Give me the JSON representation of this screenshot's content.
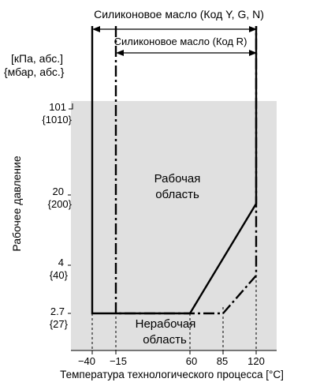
{
  "header": {
    "top_cropped_text": "",
    "outer_range_label": "Силиконовое масло (Код Y, G, N)",
    "inner_range_label": "Силиконовое масло (Код R)"
  },
  "units": {
    "kpa": "[кПа, абс.]",
    "mbar": "{мбар, абс.}"
  },
  "axes": {
    "ylabel": "Рабочее давление",
    "xlabel": "Температура технологического процесса [°C]",
    "y_ticks": [
      {
        "top": "101",
        "bottom": "{1010}",
        "kpa": 101
      },
      {
        "top": "20",
        "bottom": "{200}",
        "kpa": 20
      },
      {
        "top": "4",
        "bottom": "{40}",
        "kpa": 4
      },
      {
        "top": "2.7",
        "bottom": "{27}",
        "kpa": 2.7
      }
    ],
    "x_ticks": [
      {
        "label": "−40",
        "value": -40
      },
      {
        "label": "−15",
        "value": -15
      },
      {
        "label": "60",
        "value": 60
      },
      {
        "label": "85",
        "value": 85
      },
      {
        "label": "120",
        "value": 120
      }
    ]
  },
  "regions": {
    "operating_line1": "Рабочая",
    "operating_line2": "область",
    "non_operating_line1": "Нерабочая",
    "non_operating_line2": "область"
  },
  "chart_data": {
    "type": "line",
    "series": [
      {
        "name": "Силиконовое масло (Код Y, G, N)",
        "style": "solid",
        "points": [
          [
            -40,
            101
          ],
          [
            -40,
            2.7
          ],
          [
            60,
            2.7
          ],
          [
            120,
            20
          ],
          [
            120,
            101
          ]
        ]
      },
      {
        "name": "Силиконовое масло (Код R)",
        "style": "dash-dot",
        "points": [
          [
            -15,
            101
          ],
          [
            -15,
            2.7
          ],
          [
            85,
            2.7
          ],
          [
            120,
            4
          ],
          [
            120,
            101
          ]
        ]
      }
    ],
    "colors": {
      "shade": "#e0e0e0",
      "line": "#000000"
    }
  }
}
